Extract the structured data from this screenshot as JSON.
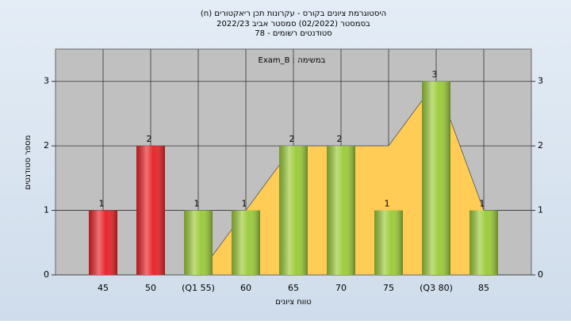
{
  "chart_data": {
    "type": "bar",
    "title": "(היסטוגרמת ציונים בקורס - עקרונות תכן ריאקטורים (ח",
    "subtitle": [
      "בסמסטר  (02/2022)  סמסטר אביב 2022/23",
      "סטודנטים רשומים - 78"
    ],
    "annotation": "Exam_B : במשימה",
    "ylabel": "מספר סטודנטים",
    "xlabel": "טווח ציונים",
    "categories": [
      "45",
      "50",
      "(Q1 55)",
      "60",
      "65",
      "70",
      "75",
      "(Q3 80)",
      "85"
    ],
    "series": [
      {
        "type": "bar",
        "colors": [
          "#e8262a",
          "#e8262a",
          "#9ccc3c",
          "#9ccc3c",
          "#9ccc3c",
          "#9ccc3c",
          "#9ccc3c",
          "#9ccc3c",
          "#9ccc3c"
        ],
        "values": [
          1,
          2,
          1,
          1,
          2,
          2,
          1,
          3,
          1
        ]
      },
      {
        "type": "area",
        "color": "#ffcc55",
        "values": [
          null,
          0,
          0,
          1,
          2,
          2,
          2,
          3,
          1
        ]
      }
    ],
    "ylim": [
      0,
      3.5
    ],
    "yticks": [
      0,
      1,
      2,
      3
    ],
    "grid": true,
    "right_axis": true
  }
}
